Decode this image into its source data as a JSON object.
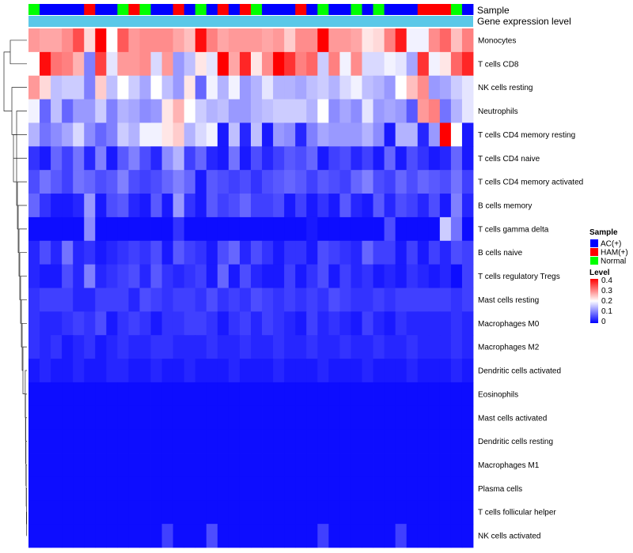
{
  "chart_data": {
    "type": "heatmap",
    "annotation_rows": [
      "Sample",
      "Gene expression level"
    ],
    "legend": {
      "sample_title": "Sample",
      "sample_items": [
        {
          "label": "AC(+)",
          "color": "#0000ff"
        },
        {
          "label": "HAM(+)",
          "color": "#ff0000"
        },
        {
          "label": "Normal",
          "color": "#00ff00"
        }
      ],
      "level_title": "Level",
      "level_ticks": [
        "0.4",
        "0.3",
        "0.2",
        "0.1",
        "0"
      ]
    },
    "value_range": [
      0,
      0.4
    ],
    "colors": {
      "low": "#0000ff",
      "mid": "#ffffff",
      "high": "#ff0000",
      "expression_bar": "#5bc8e8",
      "ac": "#0000ff",
      "ham": "#ff0000",
      "normal": "#00ff00"
    },
    "samples": [
      "N",
      "A",
      "A",
      "A",
      "A",
      "H",
      "A",
      "A",
      "N",
      "H",
      "N",
      "A",
      "A",
      "H",
      "A",
      "N",
      "A",
      "H",
      "A",
      "H",
      "N",
      "A",
      "A",
      "A",
      "H",
      "A",
      "N",
      "A",
      "A",
      "N",
      "A",
      "N",
      "A",
      "A",
      "A",
      "H",
      "H",
      "H",
      "N",
      "A"
    ],
    "rows": [
      {
        "label": "Monocytes",
        "values": [
          0.28,
          0.27,
          0.27,
          0.29,
          0.34,
          0.23,
          0.4,
          0.2,
          0.33,
          0.28,
          0.29,
          0.29,
          0.29,
          0.27,
          0.25,
          0.39,
          0.3,
          0.27,
          0.28,
          0.28,
          0.28,
          0.27,
          0.28,
          0.24,
          0.29,
          0.29,
          0.4,
          0.28,
          0.28,
          0.27,
          0.22,
          0.23,
          0.3,
          0.38,
          0.19,
          0.19,
          0.29,
          0.32,
          0.25,
          0.3
        ]
      },
      {
        "label": "T cells CD8",
        "values": [
          0.2,
          0.39,
          0.31,
          0.3,
          0.26,
          0.1,
          0.35,
          0.18,
          0.28,
          0.28,
          0.29,
          0.17,
          0.28,
          0.12,
          0.15,
          0.22,
          0.18,
          0.4,
          0.27,
          0.37,
          0.22,
          0.29,
          0.4,
          0.36,
          0.3,
          0.32,
          0.16,
          0.3,
          0.19,
          0.29,
          0.17,
          0.17,
          0.19,
          0.18,
          0.13,
          0.36,
          0.19,
          0.22,
          0.32,
          0.37
        ]
      },
      {
        "label": "NK cells resting",
        "values": [
          0.28,
          0.23,
          0.15,
          0.16,
          0.16,
          0.1,
          0.24,
          0.15,
          0.2,
          0.16,
          0.13,
          0.2,
          0.15,
          0.12,
          0.22,
          0.08,
          0.19,
          0.14,
          0.19,
          0.12,
          0.14,
          0.18,
          0.14,
          0.14,
          0.13,
          0.15,
          0.16,
          0.14,
          0.17,
          0.19,
          0.15,
          0.14,
          0.12,
          0.2,
          0.25,
          0.29,
          0.12,
          0.13,
          0.16,
          0.18
        ]
      },
      {
        "label": "Neutrophils",
        "values": [
          0.19,
          0.08,
          0.15,
          0.08,
          0.12,
          0.12,
          0.16,
          0.1,
          0.14,
          0.13,
          0.11,
          0.12,
          0.22,
          0.26,
          0.2,
          0.16,
          0.14,
          0.15,
          0.12,
          0.12,
          0.14,
          0.15,
          0.16,
          0.16,
          0.16,
          0.14,
          0.2,
          0.11,
          0.13,
          0.11,
          0.18,
          0.12,
          0.13,
          0.12,
          0.07,
          0.28,
          0.3,
          0.09,
          0.14,
          0.18
        ]
      },
      {
        "label": "T cells CD4 memory resting",
        "values": [
          0.14,
          0.09,
          0.11,
          0.13,
          0.17,
          0.11,
          0.08,
          0.1,
          0.16,
          0.14,
          0.19,
          0.19,
          0.22,
          0.24,
          0.14,
          0.17,
          0.19,
          0.02,
          0.15,
          0.03,
          0.15,
          0.02,
          0.12,
          0.11,
          0.03,
          0.1,
          0.13,
          0.12,
          0.12,
          0.12,
          0.14,
          0.11,
          0.02,
          0.14,
          0.14,
          0.03,
          0.12,
          0.4,
          0.2,
          0.02
        ]
      },
      {
        "label": "T cells CD4 naive",
        "values": [
          0.04,
          0.02,
          0.08,
          0.05,
          0.09,
          0.03,
          0.1,
          0.02,
          0.07,
          0.1,
          0.06,
          0.03,
          0.11,
          0.14,
          0.05,
          0.08,
          0.03,
          0.02,
          0.09,
          0.02,
          0.06,
          0.03,
          0.05,
          0.07,
          0.06,
          0.08,
          0.02,
          0.05,
          0.06,
          0.03,
          0.05,
          0.02,
          0.08,
          0.02,
          0.06,
          0.04,
          0.02,
          0.03,
          0.08,
          0.02
        ]
      },
      {
        "label": "T cells CD4 memory activated",
        "values": [
          0.06,
          0.09,
          0.07,
          0.05,
          0.09,
          0.08,
          0.06,
          0.07,
          0.1,
          0.06,
          0.05,
          0.06,
          0.08,
          0.1,
          0.08,
          0.02,
          0.07,
          0.06,
          0.05,
          0.06,
          0.04,
          0.06,
          0.07,
          0.08,
          0.07,
          0.05,
          0.07,
          0.06,
          0.05,
          0.08,
          0.1,
          0.06,
          0.05,
          0.08,
          0.06,
          0.08,
          0.07,
          0.06,
          0.09,
          0.05
        ]
      },
      {
        "label": "B cells memory",
        "values": [
          0.08,
          0.04,
          0.02,
          0.02,
          0.03,
          0.12,
          0.02,
          0.06,
          0.07,
          0.03,
          0.02,
          0.07,
          0.02,
          0.12,
          0.04,
          0.02,
          0.07,
          0.05,
          0.06,
          0.08,
          0.05,
          0.05,
          0.06,
          0.02,
          0.05,
          0.02,
          0.04,
          0.02,
          0.07,
          0.03,
          0.02,
          0.07,
          0.03,
          0.06,
          0.05,
          0.03,
          0.06,
          0.02,
          0.1,
          0.03
        ]
      },
      {
        "label": "T cells gamma delta",
        "values": [
          0.01,
          0.01,
          0.01,
          0.01,
          0.01,
          0.11,
          0.01,
          0.01,
          0.01,
          0.01,
          0.01,
          0.01,
          0.01,
          0.04,
          0.01,
          0.01,
          0.01,
          0.01,
          0.01,
          0.01,
          0.01,
          0.01,
          0.01,
          0.01,
          0.01,
          0.02,
          0.01,
          0.01,
          0.01,
          0.01,
          0.01,
          0.01,
          0.06,
          0.01,
          0.01,
          0.01,
          0.01,
          0.16,
          0.09,
          0.01
        ]
      },
      {
        "label": "B cells naive",
        "values": [
          0.03,
          0.06,
          0.03,
          0.09,
          0.03,
          0.04,
          0.02,
          0.03,
          0.04,
          0.05,
          0.04,
          0.06,
          0.02,
          0.07,
          0.05,
          0.04,
          0.02,
          0.06,
          0.08,
          0.03,
          0.06,
          0.04,
          0.02,
          0.04,
          0.04,
          0.02,
          0.06,
          0.05,
          0.04,
          0.03,
          0.08,
          0.05,
          0.05,
          0.02,
          0.05,
          0.02,
          0.05,
          0.03,
          0.06,
          0.05
        ]
      },
      {
        "label": "T cells regulatory  Tregs",
        "values": [
          0.03,
          0.02,
          0.02,
          0.06,
          0.03,
          0.1,
          0.03,
          0.04,
          0.05,
          0.06,
          0.03,
          0.07,
          0.04,
          0.03,
          0.04,
          0.05,
          0.02,
          0.08,
          0.02,
          0.06,
          0.03,
          0.02,
          0.02,
          0.05,
          0.02,
          0.04,
          0.06,
          0.02,
          0.05,
          0.03,
          0.04,
          0.02,
          0.03,
          0.02,
          0.04,
          0.03,
          0.02,
          0.03,
          0.01,
          0.05
        ]
      },
      {
        "label": "Mast cells resting",
        "values": [
          0.04,
          0.05,
          0.05,
          0.05,
          0.03,
          0.03,
          0.05,
          0.05,
          0.05,
          0.03,
          0.06,
          0.05,
          0.04,
          0.05,
          0.05,
          0.04,
          0.06,
          0.04,
          0.05,
          0.04,
          0.06,
          0.05,
          0.04,
          0.05,
          0.04,
          0.05,
          0.04,
          0.06,
          0.05,
          0.04,
          0.04,
          0.05,
          0.04,
          0.05,
          0.05,
          0.05,
          0.05,
          0.05,
          0.04,
          0.05
        ]
      },
      {
        "label": "Macrophages M0",
        "values": [
          0.04,
          0.03,
          0.03,
          0.04,
          0.05,
          0.04,
          0.06,
          0.02,
          0.04,
          0.05,
          0.04,
          0.02,
          0.04,
          0.04,
          0.05,
          0.05,
          0.04,
          0.02,
          0.04,
          0.05,
          0.03,
          0.05,
          0.04,
          0.03,
          0.02,
          0.05,
          0.03,
          0.04,
          0.03,
          0.02,
          0.05,
          0.03,
          0.02,
          0.04,
          0.03,
          0.03,
          0.03,
          0.03,
          0.04,
          0.03
        ]
      },
      {
        "label": "Macrophages M2",
        "values": [
          0.04,
          0.03,
          0.04,
          0.02,
          0.03,
          0.04,
          0.02,
          0.03,
          0.04,
          0.03,
          0.03,
          0.04,
          0.04,
          0.03,
          0.03,
          0.03,
          0.04,
          0.03,
          0.03,
          0.04,
          0.03,
          0.03,
          0.04,
          0.03,
          0.03,
          0.04,
          0.03,
          0.03,
          0.04,
          0.03,
          0.03,
          0.04,
          0.03,
          0.03,
          0.04,
          0.03,
          0.03,
          0.03,
          0.04,
          0.03
        ]
      },
      {
        "label": "Dendritic cells activated",
        "values": [
          0.02,
          0.03,
          0.02,
          0.02,
          0.03,
          0.02,
          0.02,
          0.03,
          0.03,
          0.02,
          0.02,
          0.03,
          0.02,
          0.02,
          0.03,
          0.02,
          0.02,
          0.02,
          0.03,
          0.02,
          0.02,
          0.02,
          0.03,
          0.02,
          0.02,
          0.02,
          0.03,
          0.02,
          0.02,
          0.02,
          0.03,
          0.02,
          0.02,
          0.02,
          0.03,
          0.02,
          0.02,
          0.02,
          0.03,
          0.02
        ]
      },
      {
        "label": "Eosinophils",
        "values": [
          0.01,
          0.01,
          0.01,
          0.01,
          0.01,
          0.01,
          0.01,
          0.01,
          0.01,
          0.01,
          0.01,
          0.01,
          0.01,
          0.01,
          0.01,
          0.01,
          0.01,
          0.01,
          0.01,
          0.01,
          0.01,
          0.01,
          0.01,
          0.01,
          0.01,
          0.01,
          0.01,
          0.01,
          0.01,
          0.01,
          0.01,
          0.01,
          0.01,
          0.01,
          0.01,
          0.01,
          0.01,
          0.01,
          0.01,
          0.01
        ]
      },
      {
        "label": "Mast cells activated",
        "values": [
          0.01,
          0.01,
          0.01,
          0.01,
          0.01,
          0.01,
          0.01,
          0.01,
          0.01,
          0.01,
          0.01,
          0.01,
          0.01,
          0.01,
          0.01,
          0.01,
          0.01,
          0.01,
          0.01,
          0.01,
          0.01,
          0.01,
          0.01,
          0.01,
          0.01,
          0.01,
          0.01,
          0.01,
          0.01,
          0.01,
          0.01,
          0.01,
          0.01,
          0.01,
          0.01,
          0.01,
          0.01,
          0.01,
          0.01,
          0.01
        ]
      },
      {
        "label": "Dendritic cells resting",
        "values": [
          0.01,
          0.01,
          0.01,
          0.01,
          0.01,
          0.01,
          0.01,
          0.01,
          0.01,
          0.01,
          0.01,
          0.01,
          0.01,
          0.01,
          0.01,
          0.01,
          0.01,
          0.01,
          0.01,
          0.01,
          0.01,
          0.01,
          0.01,
          0.01,
          0.01,
          0.01,
          0.01,
          0.01,
          0.01,
          0.01,
          0.01,
          0.01,
          0.01,
          0.01,
          0.01,
          0.01,
          0.01,
          0.01,
          0.01,
          0.01
        ]
      },
      {
        "label": "Macrophages M1",
        "values": [
          0.01,
          0.01,
          0.01,
          0.01,
          0.01,
          0.01,
          0.01,
          0.01,
          0.01,
          0.01,
          0.01,
          0.01,
          0.01,
          0.01,
          0.01,
          0.01,
          0.01,
          0.01,
          0.01,
          0.01,
          0.01,
          0.01,
          0.01,
          0.01,
          0.01,
          0.01,
          0.01,
          0.01,
          0.01,
          0.01,
          0.01,
          0.01,
          0.01,
          0.01,
          0.01,
          0.01,
          0.01,
          0.01,
          0.01,
          0.01
        ]
      },
      {
        "label": "Plasma cells",
        "values": [
          0.01,
          0.01,
          0.01,
          0.01,
          0.01,
          0.01,
          0.01,
          0.01,
          0.01,
          0.01,
          0.01,
          0.01,
          0.01,
          0.01,
          0.01,
          0.01,
          0.01,
          0.01,
          0.01,
          0.01,
          0.01,
          0.01,
          0.01,
          0.01,
          0.01,
          0.01,
          0.01,
          0.01,
          0.01,
          0.01,
          0.01,
          0.01,
          0.01,
          0.01,
          0.01,
          0.01,
          0.01,
          0.01,
          0.01,
          0.01
        ]
      },
      {
        "label": "T cells follicular helper",
        "values": [
          0.01,
          0.01,
          0.01,
          0.01,
          0.01,
          0.01,
          0.01,
          0.01,
          0.01,
          0.01,
          0.01,
          0.01,
          0.01,
          0.01,
          0.01,
          0.01,
          0.01,
          0.01,
          0.01,
          0.01,
          0.01,
          0.01,
          0.01,
          0.01,
          0.01,
          0.01,
          0.01,
          0.01,
          0.01,
          0.01,
          0.01,
          0.01,
          0.01,
          0.01,
          0.01,
          0.01,
          0.01,
          0.01,
          0.01,
          0.01
        ]
      },
      {
        "label": "NK cells activated",
        "values": [
          0.01,
          0.01,
          0.01,
          0.01,
          0.01,
          0.01,
          0.01,
          0.01,
          0.01,
          0.01,
          0.01,
          0.01,
          0.05,
          0.01,
          0.01,
          0.01,
          0.06,
          0.01,
          0.01,
          0.01,
          0.01,
          0.01,
          0.01,
          0.01,
          0.01,
          0.01,
          0.05,
          0.01,
          0.01,
          0.01,
          0.01,
          0.01,
          0.01,
          0.05,
          0.01,
          0.01,
          0.01,
          0.01,
          0.01,
          0.01
        ]
      }
    ]
  }
}
